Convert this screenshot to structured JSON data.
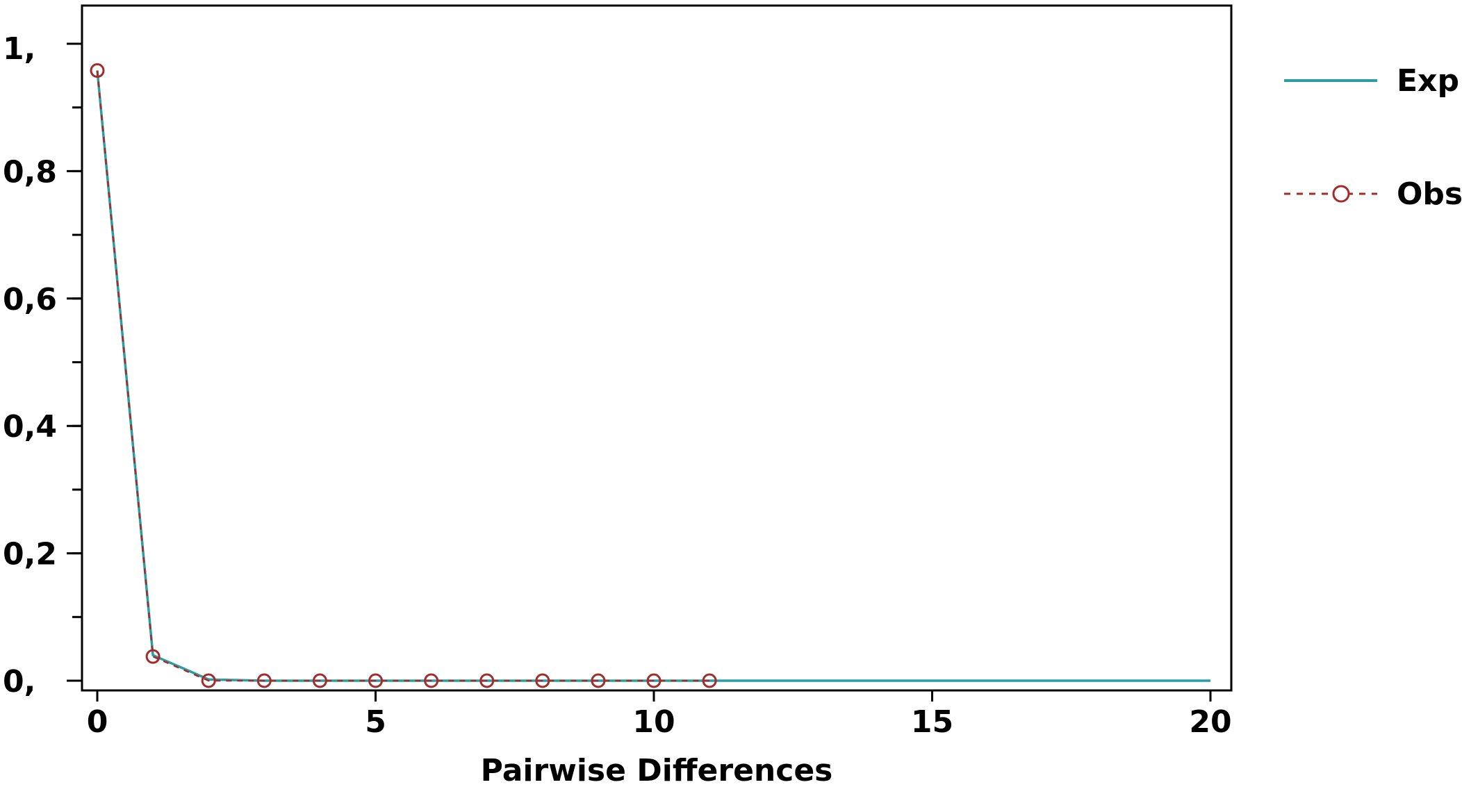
{
  "chart_data": {
    "type": "line",
    "title": "",
    "xlabel": "Pairwise Differences",
    "ylabel": "",
    "xlim": [
      0,
      20
    ],
    "ylim": [
      0,
      1
    ],
    "x_ticks": [
      {
        "value": 0,
        "label": "0"
      },
      {
        "value": 5,
        "label": "5"
      },
      {
        "value": 10,
        "label": "10"
      },
      {
        "value": 15,
        "label": "15"
      },
      {
        "value": 20,
        "label": "20"
      }
    ],
    "y_ticks": [
      {
        "value": 0,
        "label": "0,"
      },
      {
        "value": 0.2,
        "label": "0,2"
      },
      {
        "value": 0.4,
        "label": "0,4"
      },
      {
        "value": 0.6,
        "label": "0,6"
      },
      {
        "value": 0.8,
        "label": "0,8"
      },
      {
        "value": 1,
        "label": "1,"
      }
    ],
    "y_minor_step": 0.1,
    "grid": false,
    "legend_position": "right",
    "series": [
      {
        "name": "Exp",
        "style": "solid-line",
        "color": "#2a9ea3",
        "x": [
          0,
          1,
          2,
          3,
          4,
          5,
          6,
          7,
          8,
          9,
          10,
          11,
          12,
          13,
          14,
          15,
          16,
          17,
          18,
          19,
          20
        ],
        "values": [
          0.958,
          0.04,
          0.002,
          0,
          0,
          0,
          0,
          0,
          0,
          0,
          0,
          0,
          0,
          0,
          0,
          0,
          0,
          0,
          0,
          0,
          0
        ]
      },
      {
        "name": "Obs",
        "style": "dashed-line-circles",
        "color": "#a52a2a",
        "x": [
          0,
          1,
          2,
          3,
          4,
          5,
          6,
          7,
          8,
          9,
          10,
          11
        ],
        "values": [
          0.958,
          0.038,
          0,
          0,
          0,
          0,
          0,
          0,
          0,
          0,
          0,
          0
        ]
      }
    ]
  }
}
